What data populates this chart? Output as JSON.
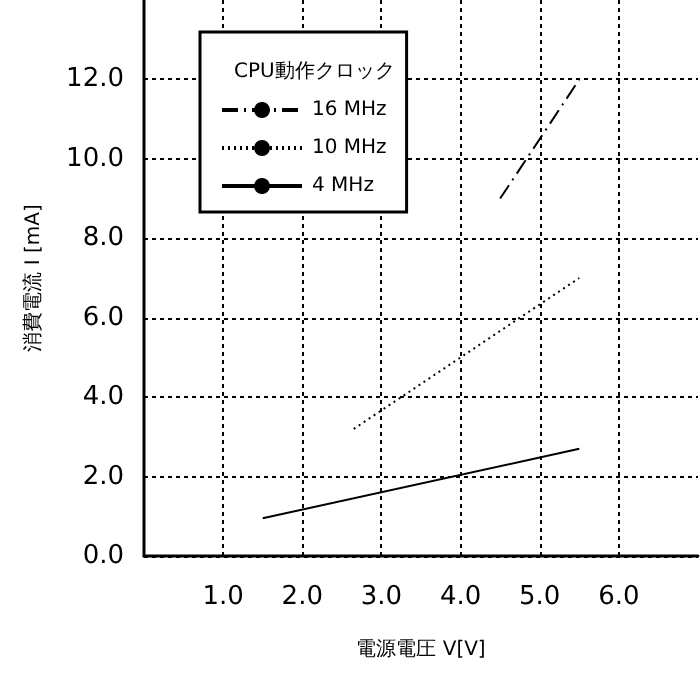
{
  "chart_data": {
    "type": "line",
    "xlabel": "電源電圧 V[V]",
    "ylabel": "消費電流 I [mA]",
    "legend_title": "CPU動作クロック",
    "legend": "top left",
    "grid": true,
    "marker": "none",
    "xlim": [
      0,
      7
    ],
    "xticks": [
      {
        "value": 1,
        "label": "1.0"
      },
      {
        "value": 2,
        "label": "2.0"
      },
      {
        "value": 3,
        "label": "3.0"
      },
      {
        "value": 4,
        "label": "4.0"
      },
      {
        "value": 5,
        "label": "5.0"
      },
      {
        "value": 6,
        "label": "6.0"
      }
    ],
    "ylim": [
      0,
      14
    ],
    "yticks": [
      {
        "value": 0,
        "label": "0.0"
      },
      {
        "value": 2,
        "label": "2.0"
      },
      {
        "value": 4,
        "label": "4.0"
      },
      {
        "value": 6,
        "label": "6.0"
      },
      {
        "value": 8,
        "label": "8.0"
      },
      {
        "value": 10,
        "label": "10.0"
      },
      {
        "value": 12,
        "label": "12.0"
      }
    ],
    "series": [
      {
        "name": "16 MHz",
        "color": "#000000",
        "line_style": "dashdot",
        "x": [
          4.5,
          5.5
        ],
        "values": [
          9.0,
          12.0
        ]
      },
      {
        "name": "10 MHz",
        "color": "#000000",
        "line_style": "dotted",
        "x": [
          2.65,
          4.0,
          5.5
        ],
        "values": [
          3.2,
          5.0,
          7.0
        ]
      },
      {
        "name": "4 MHz",
        "color": "#000000",
        "line_style": "solid",
        "x": [
          1.5,
          5.5
        ],
        "values": [
          0.95,
          2.7
        ]
      }
    ]
  }
}
